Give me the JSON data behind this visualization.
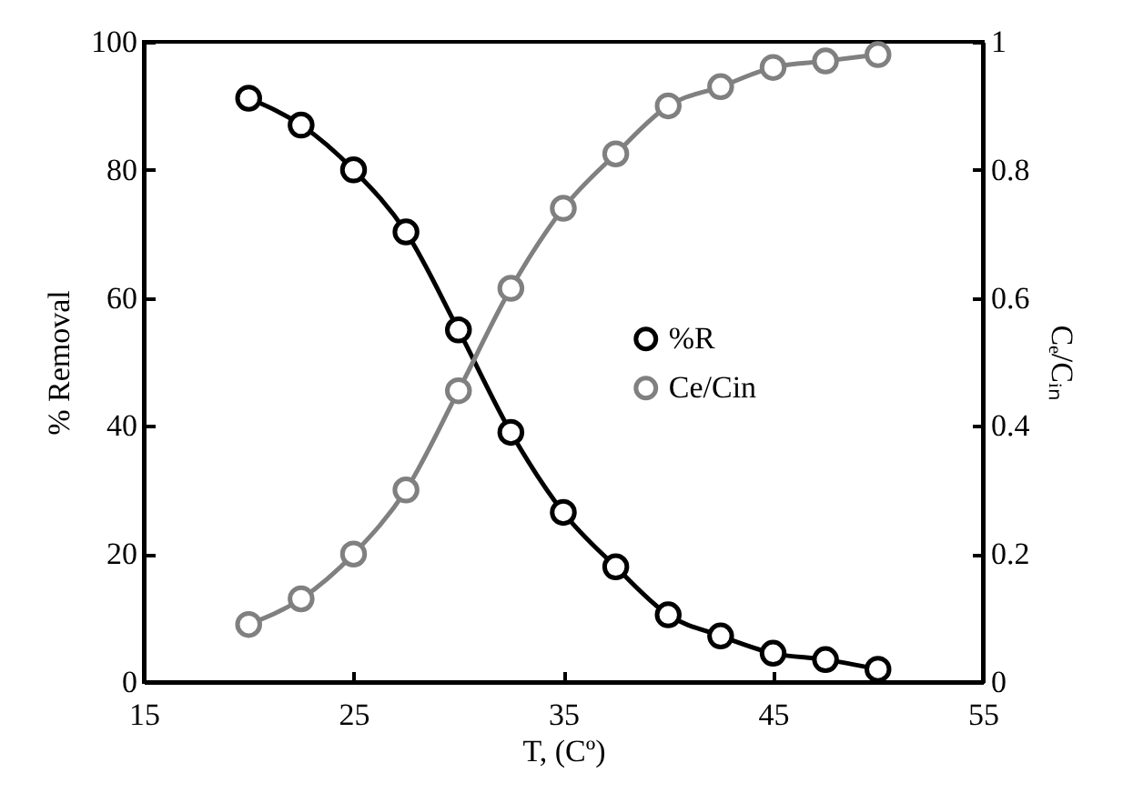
{
  "chart_data": {
    "type": "line",
    "xlabel": "T, (Cº)",
    "ylabel": "% Removal",
    "y2label": "Cₑ/Cᵢₙ",
    "x": [
      20,
      22.5,
      25,
      27.5,
      30,
      32.5,
      35,
      37.5,
      40,
      42.5,
      45,
      47.5,
      50
    ],
    "series": [
      {
        "name": "%R",
        "color": "#000000",
        "values": [
          91.2,
          87,
          80,
          70.3,
          55,
          39,
          26.5,
          18,
          10.5,
          7.2,
          4.5,
          3.5,
          2
        ]
      },
      {
        "name": "Ce/Cin",
        "color": "#808080",
        "axis": "y2",
        "values": [
          0.09,
          0.13,
          0.2,
          0.3,
          0.455,
          0.615,
          0.74,
          0.825,
          0.9,
          0.93,
          0.96,
          0.97,
          0.98
        ]
      }
    ],
    "xlim": [
      15,
      55
    ],
    "xticks": [
      15,
      25,
      35,
      45,
      55
    ],
    "ylim": [
      0,
      100
    ],
    "yticks": [
      0,
      20,
      40,
      60,
      80,
      100
    ],
    "y2lim": [
      0,
      1
    ],
    "y2ticks": [
      0,
      0.2,
      0.4,
      0.6,
      0.8,
      1
    ],
    "grid": false,
    "legend": "right",
    "marker": "circle",
    "line_style": "solid"
  }
}
